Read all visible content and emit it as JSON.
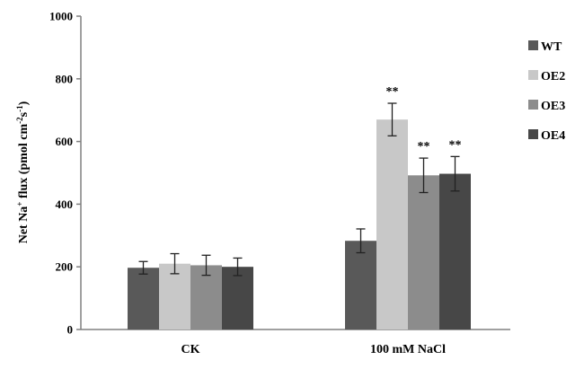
{
  "chart_data": {
    "type": "bar",
    "categories": [
      "CK",
      "100 mM NaCl"
    ],
    "series": [
      {
        "name": "WT",
        "color": "#595959",
        "values": [
          197,
          283
        ],
        "errors": [
          20,
          38
        ],
        "significance": [
          "",
          ""
        ]
      },
      {
        "name": "OE2",
        "color": "#c8c8c8",
        "values": [
          210,
          670
        ],
        "errors": [
          32,
          52
        ],
        "significance": [
          "",
          "**"
        ]
      },
      {
        "name": "OE3",
        "color": "#8c8c8c",
        "values": [
          205,
          492
        ],
        "errors": [
          32,
          55
        ],
        "significance": [
          "",
          "**"
        ]
      },
      {
        "name": "OE4",
        "color": "#474747",
        "values": [
          200,
          497
        ],
        "errors": [
          28,
          55
        ],
        "significance": [
          "",
          "**"
        ]
      }
    ],
    "ylabel_parts": [
      "Net Na",
      "+",
      " flux (pmol cm",
      "-2",
      "s",
      "-1",
      ")"
    ],
    "ylim": [
      0,
      1000
    ],
    "yticks": [
      "0",
      "200",
      "400",
      "600",
      "800",
      "1000"
    ],
    "grid": false,
    "legend_position": "right"
  }
}
